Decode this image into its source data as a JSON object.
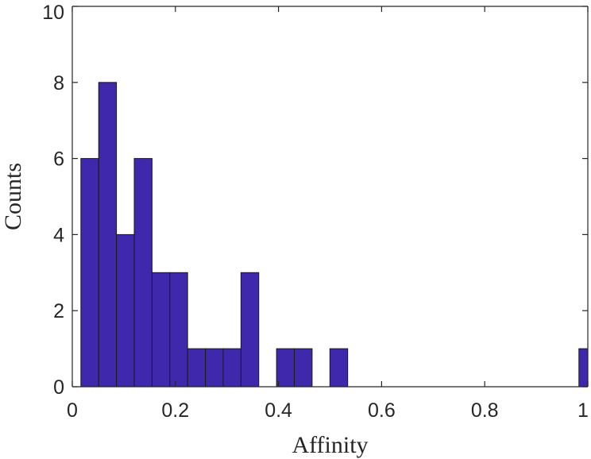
{
  "chart_data": {
    "type": "bar",
    "subtype": "histogram",
    "xlabel": "Affinity",
    "ylabel": "Counts",
    "xlim": [
      0,
      1
    ],
    "ylim": [
      0,
      10
    ],
    "xticks": [
      0,
      0.2,
      0.4,
      0.6,
      0.8,
      1
    ],
    "xtick_labels": [
      "0",
      "0.2",
      "0.4",
      "0.6",
      "0.8",
      "1"
    ],
    "yticks": [
      0,
      2,
      4,
      6,
      8,
      10
    ],
    "ytick_labels": [
      "0",
      "2",
      "4",
      "6",
      "8",
      "10"
    ],
    "bin_edges": [
      0.0167,
      0.0512,
      0.0857,
      0.1202,
      0.1547,
      0.1892,
      0.2237,
      0.2582,
      0.2927,
      0.3272,
      0.3617,
      0.3962,
      0.4307,
      0.4652,
      0.4997,
      0.5342,
      0.5687,
      0.6032,
      0.6377,
      0.6722,
      0.7067,
      0.7412,
      0.7757,
      0.8102,
      0.8447,
      0.8792,
      0.9137,
      0.9482,
      0.9827,
      1.0172
    ],
    "values": [
      6,
      8,
      4,
      6,
      3,
      3,
      1,
      1,
      1,
      3,
      0,
      1,
      1,
      0,
      1,
      0,
      0,
      0,
      0,
      0,
      0,
      0,
      0,
      0,
      0,
      0,
      0,
      0,
      1
    ],
    "bar_color": "#3f28ab",
    "grid": false,
    "box": "top-right"
  }
}
